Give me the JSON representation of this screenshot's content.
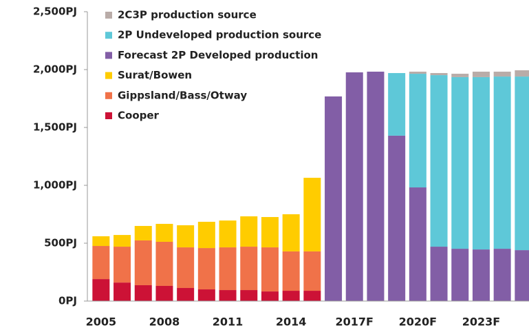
{
  "chart_data": {
    "type": "stacked_bar",
    "categories": [
      "2005",
      null,
      null,
      "2008",
      null,
      null,
      "2011",
      null,
      null,
      "2014",
      null,
      null,
      "2017F",
      null,
      null,
      "2020F",
      null,
      null,
      "2023F",
      null,
      null
    ],
    "series": [
      {
        "name": "Cooper",
        "color": "#cc1236",
        "values": [
          190,
          160,
          137,
          131,
          113,
          101,
          95,
          95,
          83,
          89,
          89,
          null,
          null,
          null,
          null,
          null,
          null,
          null,
          null,
          null,
          null
        ]
      },
      {
        "name": "Gippsland/Bass/Otway",
        "color": "#f07249",
        "values": [
          286,
          310,
          387,
          381,
          351,
          357,
          369,
          375,
          381,
          340,
          340,
          null,
          null,
          null,
          null,
          null,
          null,
          null,
          null,
          null,
          null
        ]
      },
      {
        "name": "Surat/Bowen",
        "color": "#ffcc00",
        "values": [
          84,
          101,
          125,
          155,
          191,
          227,
          232,
          262,
          262,
          321,
          636,
          null,
          null,
          null,
          null,
          null,
          null,
          null,
          null,
          null,
          null
        ]
      },
      {
        "name": "Forecast 2P Developed production",
        "color": "#825ea6",
        "values": [
          null,
          null,
          null,
          null,
          null,
          null,
          null,
          null,
          null,
          null,
          null,
          1768,
          1976,
          1982,
          1429,
          982,
          470,
          452,
          446,
          452,
          440
        ]
      },
      {
        "name": "2P Undeveloped production source",
        "color": "#5ec8d8",
        "values": [
          null,
          null,
          null,
          null,
          null,
          null,
          null,
          null,
          null,
          null,
          null,
          null,
          null,
          null,
          541,
          982,
          1482,
          1483,
          1489,
          1488,
          1500
        ]
      },
      {
        "name": "2C3P production source",
        "color": "#b9aca8",
        "values": [
          null,
          null,
          null,
          null,
          null,
          null,
          null,
          null,
          null,
          null,
          null,
          null,
          null,
          null,
          null,
          18,
          18,
          29,
          47,
          42,
          54
        ]
      }
    ],
    "ylim": [
      0,
      2500
    ],
    "yticks": [
      {
        "value": 0,
        "label": "0PJ"
      },
      {
        "value": 500,
        "label": "500PJ"
      },
      {
        "value": 1000,
        "label": "1,000PJ"
      },
      {
        "value": 1500,
        "label": "1,500PJ"
      },
      {
        "value": 2000,
        "label": "2,000PJ"
      },
      {
        "value": 2500,
        "label": "2,500PJ"
      }
    ],
    "legend": "top-left"
  }
}
